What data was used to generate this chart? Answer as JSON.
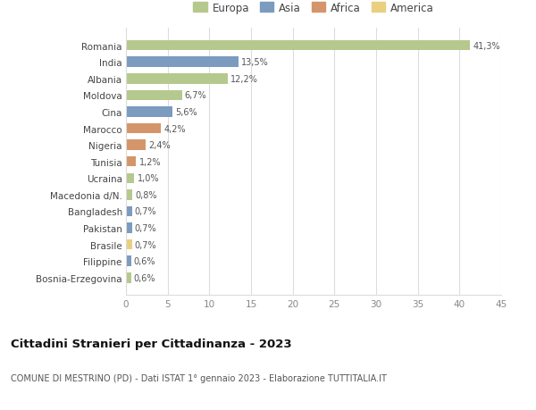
{
  "countries": [
    "Romania",
    "India",
    "Albania",
    "Moldova",
    "Cina",
    "Marocco",
    "Nigeria",
    "Tunisia",
    "Ucraina",
    "Macedonia d/N.",
    "Bangladesh",
    "Pakistan",
    "Brasile",
    "Filippine",
    "Bosnia-Erzegovina"
  ],
  "values": [
    41.3,
    13.5,
    12.2,
    6.7,
    5.6,
    4.2,
    2.4,
    1.2,
    1.0,
    0.8,
    0.7,
    0.7,
    0.7,
    0.6,
    0.6
  ],
  "labels": [
    "41,3%",
    "13,5%",
    "12,2%",
    "6,7%",
    "5,6%",
    "4,2%",
    "2,4%",
    "1,2%",
    "1,0%",
    "0,8%",
    "0,7%",
    "0,7%",
    "0,7%",
    "0,6%",
    "0,6%"
  ],
  "continents": [
    "Europa",
    "Asia",
    "Europa",
    "Europa",
    "Asia",
    "Africa",
    "Africa",
    "Africa",
    "Europa",
    "Europa",
    "Asia",
    "Asia",
    "America",
    "Asia",
    "Europa"
  ],
  "continent_colors": {
    "Europa": "#b5c98e",
    "Asia": "#7b9bbf",
    "Africa": "#d4956a",
    "America": "#e8d080"
  },
  "legend_order": [
    "Europa",
    "Asia",
    "Africa",
    "America"
  ],
  "title": "Cittadini Stranieri per Cittadinanza - 2023",
  "subtitle": "COMUNE DI MESTRINO (PD) - Dati ISTAT 1° gennaio 2023 - Elaborazione TUTTITALIA.IT",
  "xlim": [
    0,
    45
  ],
  "xticks": [
    0,
    5,
    10,
    15,
    20,
    25,
    30,
    35,
    40,
    45
  ],
  "background_color": "#ffffff",
  "grid_color": "#dddddd"
}
